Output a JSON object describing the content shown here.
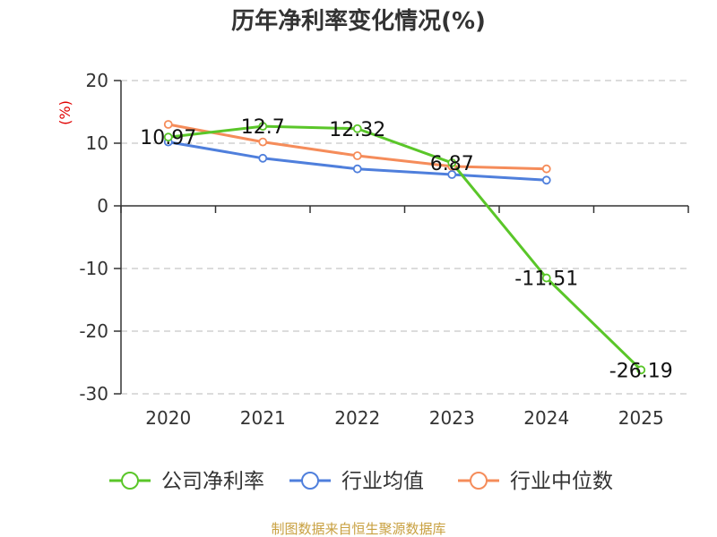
{
  "chart_data": {
    "type": "line",
    "title": "历年净利率变化情况(%)",
    "ylabel": "(%)",
    "categories": [
      "2020",
      "2021",
      "2022",
      "2023",
      "2024",
      "2025"
    ],
    "ylim": [
      -30,
      20
    ],
    "yticks": [
      "20",
      "10",
      "0",
      "-10",
      "-20",
      "-30"
    ],
    "grid": true,
    "legend_position": "bottom",
    "series": [
      {
        "name": "公司净利率",
        "color": "#5ac629",
        "values": [
          10.97,
          12.7,
          12.32,
          6.87,
          -11.51,
          -26.19
        ],
        "labels": [
          "10.97",
          "12.7",
          "12.32",
          "6.87",
          "-11.51",
          "-26.19"
        ]
      },
      {
        "name": "行业均值",
        "color": "#4f7fdc",
        "values": [
          10.2,
          7.6,
          5.9,
          5.0,
          4.1,
          null
        ]
      },
      {
        "name": "行业中位数",
        "color": "#f58c5a",
        "values": [
          13.0,
          10.2,
          8.0,
          6.3,
          5.9,
          null
        ]
      }
    ]
  },
  "source": "制图数据来自恒生聚源数据库"
}
